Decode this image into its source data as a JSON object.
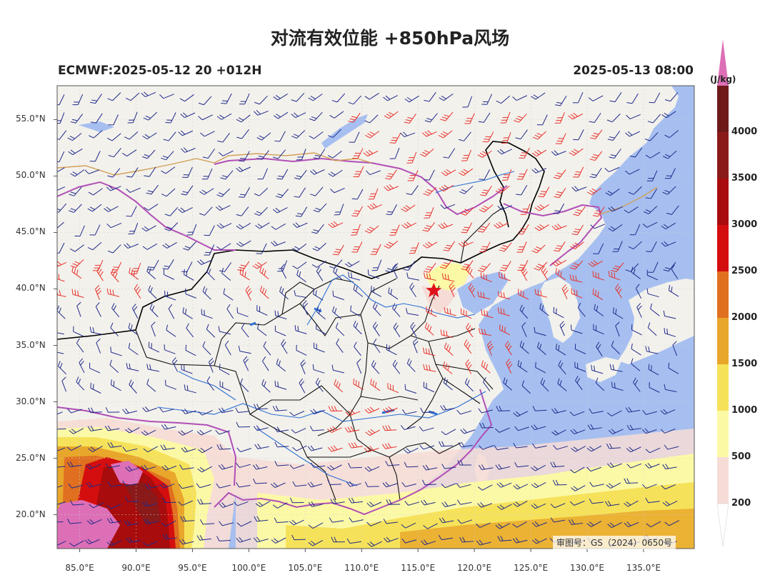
{
  "header": {
    "title": "对流有效位能 +850hPa风场",
    "model_run": "ECMWF:2025-05-12 20 +012H",
    "valid_time": "2025-05-13 08:00"
  },
  "map": {
    "projection": "lat-lon",
    "lon_range": [
      83,
      139.5
    ],
    "lat_range": [
      17,
      58
    ],
    "lon_ticks": [
      "85.0°E",
      "90.0°E",
      "95.0°E",
      "100.0°E",
      "105.0°E",
      "110.0°E",
      "115.0°E",
      "120.0°E",
      "125.0°E",
      "130.0°E",
      "135.0°E"
    ],
    "lat_ticks": [
      "55.0°N",
      "50.0°N",
      "45.0°N",
      "40.0°N",
      "35.0°N",
      "30.0°N",
      "25.0°N",
      "20.0°N"
    ],
    "land_color": "#f3f1ec",
    "sea_color": "#a6bff0",
    "border_color": "#000000",
    "province_color": "#222222",
    "coast_border_color": "#b04fb6",
    "river_color": "#2b6fd4",
    "marker": {
      "type": "star",
      "color": "#e0101a",
      "lon": 116.4,
      "lat": 39.9
    },
    "stamp_text": "审图号：GS（2024）0650号"
  },
  "colorbar": {
    "unit": "(J/kg)",
    "levels": [
      {
        "label": "200",
        "color": "#f6dcd6"
      },
      {
        "label": "500",
        "color": "#fcf9a6"
      },
      {
        "label": "1000",
        "color": "#f6e25a"
      },
      {
        "label": "1500",
        "color": "#e8a62a"
      },
      {
        "label": "2000",
        "color": "#e07020"
      },
      {
        "label": "2500",
        "color": "#d40e0e"
      },
      {
        "label": "3000",
        "color": "#a80c0c"
      },
      {
        "label": "3500",
        "color": "#8a1a1a"
      },
      {
        "label": "4000",
        "color": "#6e1a1a"
      }
    ],
    "extend_max_color": "#dd6fb6"
  },
  "wind_barbs": {
    "normal_color": "#1f2a8a",
    "strong_color": "#e8302a"
  }
}
